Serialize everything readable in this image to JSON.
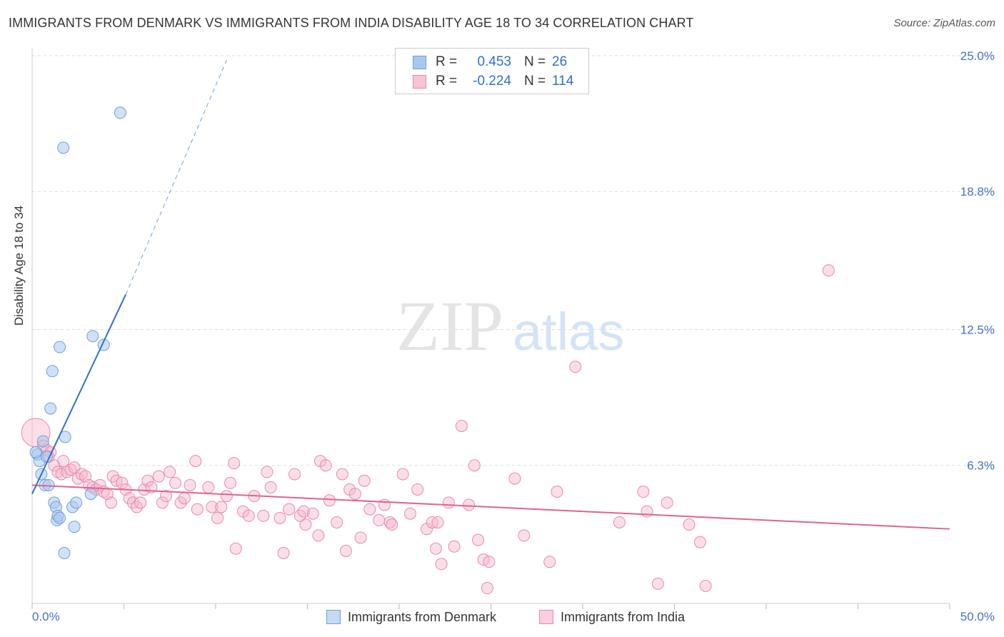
{
  "header": {
    "title": "IMMIGRANTS FROM DENMARK VS IMMIGRANTS FROM INDIA DISABILITY AGE 18 TO 34 CORRELATION CHART",
    "source": "Source: ZipAtlas.com"
  },
  "watermark": {
    "zip": "ZIP",
    "atlas": "atlas"
  },
  "legend": {
    "rows": [
      {
        "r_label": "R =",
        "r_value": "0.453",
        "n_label": "N =",
        "n_value": "26"
      },
      {
        "r_label": "R =",
        "r_value": "-0.224",
        "n_label": "N =",
        "n_value": "114"
      }
    ]
  },
  "bottom_legend": {
    "items": [
      {
        "label": "Immigrants from Denmark"
      },
      {
        "label": "Immigrants from India"
      }
    ]
  },
  "chart_data": {
    "type": "scatter",
    "title": "IMMIGRANTS FROM DENMARK VS IMMIGRANTS FROM INDIA DISABILITY AGE 18 TO 34 CORRELATION CHART",
    "xlabel": "",
    "ylabel": "Disability Age 18 to 34",
    "xlim": [
      0,
      50
    ],
    "ylim": [
      0,
      25
    ],
    "x_tick_labels": [
      "0.0%",
      "50.0%"
    ],
    "y_ticks": [
      6.3,
      12.5,
      18.8,
      25.0
    ],
    "y_tick_labels": [
      "6.3%",
      "12.5%",
      "18.8%",
      "25.0%"
    ],
    "grid": "horizontal dashed",
    "legend_position": "top-center",
    "colors": {
      "denmark_fill": "#a9c8ef",
      "denmark_stroke": "#6f9fd8",
      "denmark_line": "#2f6fcc",
      "india_fill": "#f6b6cb",
      "india_stroke": "#e889a8",
      "india_line": "#e0648f",
      "tick_label": "#4472c4",
      "grid": "#dddddd"
    },
    "series": [
      {
        "name": "Immigrants from Denmark",
        "r": 0.453,
        "n": 26,
        "trend": {
          "x": [
            0.0,
            5.1
          ],
          "y": [
            5.0,
            14.1
          ],
          "dashed_extension": {
            "x": [
              5.1,
              10.6
            ],
            "y": [
              14.1,
              24.8
            ]
          }
        },
        "points": [
          {
            "x": 0.3,
            "y": 6.8
          },
          {
            "x": 0.4,
            "y": 6.5
          },
          {
            "x": 0.5,
            "y": 5.9
          },
          {
            "x": 0.6,
            "y": 7.4
          },
          {
            "x": 0.7,
            "y": 5.4
          },
          {
            "x": 0.8,
            "y": 6.7
          },
          {
            "x": 0.9,
            "y": 5.4
          },
          {
            "x": 1.0,
            "y": 8.9
          },
          {
            "x": 1.1,
            "y": 10.6
          },
          {
            "x": 1.2,
            "y": 4.6
          },
          {
            "x": 1.3,
            "y": 4.4
          },
          {
            "x": 1.35,
            "y": 3.8
          },
          {
            "x": 1.4,
            "y": 4.0
          },
          {
            "x": 1.5,
            "y": 3.9
          },
          {
            "x": 1.5,
            "y": 11.7
          },
          {
            "x": 1.7,
            "y": 20.8
          },
          {
            "x": 1.75,
            "y": 2.3
          },
          {
            "x": 1.8,
            "y": 7.6
          },
          {
            "x": 2.2,
            "y": 4.4
          },
          {
            "x": 2.3,
            "y": 3.5
          },
          {
            "x": 2.4,
            "y": 4.6
          },
          {
            "x": 3.2,
            "y": 5.0
          },
          {
            "x": 3.3,
            "y": 12.2
          },
          {
            "x": 3.9,
            "y": 11.8
          },
          {
            "x": 4.8,
            "y": 22.4
          },
          {
            "x": 0.2,
            "y": 6.9
          }
        ]
      },
      {
        "name": "Immigrants from India",
        "r": -0.224,
        "n": 114,
        "trend": {
          "x": [
            0.0,
            50.0
          ],
          "y": [
            5.4,
            3.4
          ]
        },
        "points": [
          {
            "x": 0.2,
            "y": 7.8,
            "big": true
          },
          {
            "x": 0.6,
            "y": 7.2
          },
          {
            "x": 0.8,
            "y": 7.0
          },
          {
            "x": 1.0,
            "y": 6.9
          },
          {
            "x": 1.2,
            "y": 6.3
          },
          {
            "x": 1.4,
            "y": 6.0
          },
          {
            "x": 1.6,
            "y": 5.9
          },
          {
            "x": 1.7,
            "y": 6.5
          },
          {
            "x": 1.9,
            "y": 6.0
          },
          {
            "x": 2.1,
            "y": 6.1
          },
          {
            "x": 2.3,
            "y": 6.2
          },
          {
            "x": 2.5,
            "y": 5.7
          },
          {
            "x": 2.7,
            "y": 5.9
          },
          {
            "x": 2.9,
            "y": 5.8
          },
          {
            "x": 3.1,
            "y": 5.4
          },
          {
            "x": 3.3,
            "y": 5.3
          },
          {
            "x": 3.5,
            "y": 5.2
          },
          {
            "x": 3.7,
            "y": 5.4
          },
          {
            "x": 3.9,
            "y": 5.1
          },
          {
            "x": 4.1,
            "y": 5.0
          },
          {
            "x": 4.3,
            "y": 4.6
          },
          {
            "x": 4.4,
            "y": 5.8
          },
          {
            "x": 4.6,
            "y": 5.6
          },
          {
            "x": 4.9,
            "y": 5.5
          },
          {
            "x": 5.1,
            "y": 5.2
          },
          {
            "x": 5.3,
            "y": 4.8
          },
          {
            "x": 5.5,
            "y": 4.6
          },
          {
            "x": 5.7,
            "y": 4.4
          },
          {
            "x": 5.9,
            "y": 4.6
          },
          {
            "x": 6.1,
            "y": 5.2
          },
          {
            "x": 6.3,
            "y": 5.6
          },
          {
            "x": 6.5,
            "y": 5.3
          },
          {
            "x": 6.9,
            "y": 5.8
          },
          {
            "x": 7.1,
            "y": 4.6
          },
          {
            "x": 7.3,
            "y": 4.9
          },
          {
            "x": 7.5,
            "y": 6.0
          },
          {
            "x": 7.8,
            "y": 5.5
          },
          {
            "x": 8.1,
            "y": 4.6
          },
          {
            "x": 8.3,
            "y": 4.8
          },
          {
            "x": 8.6,
            "y": 5.4
          },
          {
            "x": 8.9,
            "y": 6.5
          },
          {
            "x": 9.0,
            "y": 4.3
          },
          {
            "x": 9.6,
            "y": 5.3
          },
          {
            "x": 9.8,
            "y": 4.4
          },
          {
            "x": 10.1,
            "y": 3.9
          },
          {
            "x": 10.3,
            "y": 4.4
          },
          {
            "x": 10.6,
            "y": 4.9
          },
          {
            "x": 10.8,
            "y": 5.5
          },
          {
            "x": 11.0,
            "y": 6.4
          },
          {
            "x": 11.1,
            "y": 2.5
          },
          {
            "x": 11.5,
            "y": 4.2
          },
          {
            "x": 11.8,
            "y": 4.0
          },
          {
            "x": 12.1,
            "y": 4.9
          },
          {
            "x": 12.6,
            "y": 4.0
          },
          {
            "x": 12.8,
            "y": 6.0
          },
          {
            "x": 13.0,
            "y": 5.3
          },
          {
            "x": 13.5,
            "y": 3.9
          },
          {
            "x": 13.7,
            "y": 2.3
          },
          {
            "x": 14.0,
            "y": 4.3
          },
          {
            "x": 14.3,
            "y": 5.9
          },
          {
            "x": 14.6,
            "y": 4.0
          },
          {
            "x": 14.8,
            "y": 4.2
          },
          {
            "x": 14.9,
            "y": 3.6
          },
          {
            "x": 15.3,
            "y": 4.1
          },
          {
            "x": 15.6,
            "y": 3.1
          },
          {
            "x": 15.7,
            "y": 6.5
          },
          {
            "x": 16.0,
            "y": 6.3
          },
          {
            "x": 16.2,
            "y": 4.7
          },
          {
            "x": 16.6,
            "y": 3.7
          },
          {
            "x": 16.9,
            "y": 5.9
          },
          {
            "x": 17.1,
            "y": 2.4
          },
          {
            "x": 17.3,
            "y": 5.2
          },
          {
            "x": 17.6,
            "y": 5.0
          },
          {
            "x": 17.9,
            "y": 3.0
          },
          {
            "x": 18.1,
            "y": 5.6
          },
          {
            "x": 18.4,
            "y": 4.3
          },
          {
            "x": 18.9,
            "y": 3.8
          },
          {
            "x": 19.2,
            "y": 4.5
          },
          {
            "x": 19.5,
            "y": 3.7
          },
          {
            "x": 19.6,
            "y": 3.6
          },
          {
            "x": 20.2,
            "y": 5.9
          },
          {
            "x": 20.6,
            "y": 4.1
          },
          {
            "x": 21.0,
            "y": 5.2
          },
          {
            "x": 21.5,
            "y": 3.4
          },
          {
            "x": 21.8,
            "y": 3.7
          },
          {
            "x": 22.0,
            "y": 2.5
          },
          {
            "x": 22.1,
            "y": 3.7
          },
          {
            "x": 22.7,
            "y": 4.6
          },
          {
            "x": 22.3,
            "y": 1.8
          },
          {
            "x": 23.0,
            "y": 2.6
          },
          {
            "x": 23.4,
            "y": 8.1
          },
          {
            "x": 23.8,
            "y": 4.5
          },
          {
            "x": 24.1,
            "y": 6.3
          },
          {
            "x": 24.3,
            "y": 2.9
          },
          {
            "x": 24.6,
            "y": 2.0
          },
          {
            "x": 24.9,
            "y": 1.9
          },
          {
            "x": 24.8,
            "y": 0.7
          },
          {
            "x": 26.3,
            "y": 5.7
          },
          {
            "x": 26.8,
            "y": 3.1
          },
          {
            "x": 28.2,
            "y": 1.9
          },
          {
            "x": 28.6,
            "y": 5.1
          },
          {
            "x": 29.6,
            "y": 10.8
          },
          {
            "x": 32.0,
            "y": 3.7
          },
          {
            "x": 33.3,
            "y": 5.1
          },
          {
            "x": 33.5,
            "y": 4.2
          },
          {
            "x": 34.1,
            "y": 0.9
          },
          {
            "x": 34.6,
            "y": 4.6
          },
          {
            "x": 35.8,
            "y": 3.6
          },
          {
            "x": 36.4,
            "y": 2.8
          },
          {
            "x": 36.7,
            "y": 0.8
          },
          {
            "x": 43.4,
            "y": 15.2
          },
          {
            "x": 0.9,
            "y": 6.7
          }
        ]
      }
    ]
  }
}
